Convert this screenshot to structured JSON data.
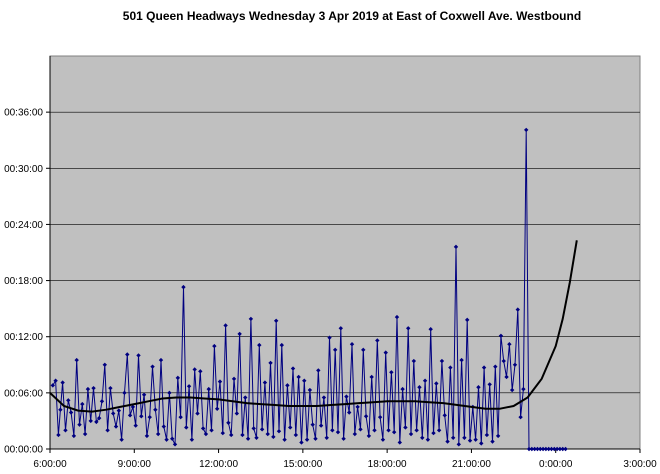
{
  "chart_data": {
    "type": "line",
    "title": "501 Queen Headways Wednesday 3 Apr 2019 at East of Coxwell Ave. Westbound",
    "xlabel": "",
    "ylabel": "",
    "x_unit": "hours since 0:00 of service day",
    "y_unit": "minutes",
    "xlim": [
      6,
      27
    ],
    "ylim": [
      0,
      42
    ],
    "x_tick_labels": [
      "6:00:00",
      "9:00:00",
      "12:00:00",
      "15:00:00",
      "18:00:00",
      "21:00:00",
      "0:00:00",
      "3:00:00"
    ],
    "x_tick_values": [
      6,
      9,
      12,
      15,
      18,
      21,
      24,
      27
    ],
    "y_tick_labels": [
      "00:00:00",
      "00:06:00",
      "00:12:00",
      "00:18:00",
      "00:24:00",
      "00:30:00",
      "00:36:00"
    ],
    "y_tick_values": [
      0,
      6,
      12,
      18,
      24,
      30,
      36
    ],
    "grid": "horizontal",
    "plot_background": "#C0C0C0",
    "series": [
      {
        "name": "",
        "style": "line-with-diamond-markers",
        "color": "#000080",
        "x": [
          6.1,
          6.2,
          6.3,
          6.37,
          6.45,
          6.55,
          6.65,
          6.75,
          6.85,
          6.95,
          7.05,
          7.15,
          7.25,
          7.35,
          7.45,
          7.55,
          7.65,
          7.75,
          7.85,
          7.95,
          8.05,
          8.15,
          8.25,
          8.35,
          8.45,
          8.55,
          8.65,
          8.75,
          8.85,
          8.95,
          9.05,
          9.15,
          9.25,
          9.35,
          9.45,
          9.55,
          9.65,
          9.75,
          9.85,
          9.95,
          10.05,
          10.15,
          10.25,
          10.35,
          10.45,
          10.55,
          10.65,
          10.75,
          10.85,
          10.95,
          11.05,
          11.15,
          11.25,
          11.35,
          11.45,
          11.55,
          11.65,
          11.75,
          11.85,
          11.95,
          12.05,
          12.15,
          12.25,
          12.35,
          12.45,
          12.55,
          12.65,
          12.75,
          12.85,
          12.95,
          13.05,
          13.15,
          13.25,
          13.35,
          13.45,
          13.55,
          13.65,
          13.75,
          13.85,
          13.95,
          14.05,
          14.15,
          14.25,
          14.35,
          14.45,
          14.55,
          14.65,
          14.75,
          14.85,
          14.95,
          15.05,
          15.15,
          15.25,
          15.35,
          15.45,
          15.55,
          15.65,
          15.75,
          15.85,
          15.95,
          16.05,
          16.15,
          16.25,
          16.35,
          16.45,
          16.55,
          16.65,
          16.75,
          16.85,
          16.95,
          17.05,
          17.15,
          17.25,
          17.35,
          17.45,
          17.55,
          17.65,
          17.75,
          17.85,
          17.95,
          18.05,
          18.15,
          18.25,
          18.35,
          18.45,
          18.55,
          18.65,
          18.75,
          18.85,
          18.95,
          19.05,
          19.15,
          19.25,
          19.35,
          19.45,
          19.55,
          19.65,
          19.75,
          19.85,
          19.95,
          20.05,
          20.15,
          20.25,
          20.35,
          20.45,
          20.55,
          20.65,
          20.75,
          20.85,
          20.95,
          21.05,
          21.15,
          21.25,
          21.35,
          21.45,
          21.55,
          21.65,
          21.75,
          21.85,
          21.95,
          22.05,
          22.15,
          22.25,
          22.35,
          22.45,
          22.55,
          22.65,
          22.75,
          22.85,
          22.95,
          23.05,
          23.15,
          23.25,
          23.35,
          23.45,
          23.55,
          23.65,
          23.75,
          23.85,
          23.95,
          24.05,
          24.15,
          24.25,
          24.35
        ],
        "y": [
          6.8,
          7.3,
          1.5,
          4.2,
          7.1,
          2.0,
          5.2,
          3.9,
          1.4,
          9.5,
          2.6,
          4.8,
          1.6,
          6.4,
          3.0,
          6.5,
          2.9,
          3.3,
          5.1,
          9.0,
          2.0,
          6.5,
          3.8,
          2.4,
          4.1,
          1.0,
          6.0,
          10.1,
          3.6,
          4.5,
          2.5,
          10.0,
          3.5,
          5.8,
          1.4,
          3.4,
          8.8,
          4.2,
          1.6,
          9.5,
          2.4,
          1.0,
          6.0,
          1.1,
          0.5,
          7.6,
          3.4,
          17.3,
          2.3,
          6.7,
          1.0,
          8.5,
          3.8,
          8.3,
          2.2,
          1.6,
          6.4,
          2.0,
          11.0,
          4.3,
          7.2,
          1.7,
          13.2,
          2.8,
          1.5,
          7.5,
          3.8,
          12.3,
          1.5,
          5.5,
          1.1,
          13.9,
          2.2,
          1.2,
          11.1,
          2.1,
          7.1,
          1.6,
          9.2,
          1.3,
          13.7,
          1.9,
          11.1,
          1.0,
          6.8,
          2.3,
          8.6,
          1.5,
          7.7,
          0.7,
          7.3,
          1.0,
          6.3,
          2.6,
          1.1,
          8.4,
          2.5,
          5.5,
          1.2,
          11.9,
          2.0,
          10.6,
          1.8,
          12.9,
          1.1,
          5.6,
          3.9,
          11.2,
          1.6,
          4.5,
          2.1,
          10.6,
          3.5,
          1.4,
          7.7,
          2.0,
          11.6,
          3.4,
          1.0,
          10.3,
          2.0,
          8.2,
          1.8,
          14.1,
          0.7,
          6.4,
          2.3,
          12.9,
          1.6,
          9.4,
          2.0,
          6.6,
          1.2,
          7.3,
          1.0,
          12.8,
          1.7,
          7.0,
          2.0,
          9.4,
          3.6,
          0.8,
          8.7,
          1.2,
          21.6,
          0.5,
          9.5,
          1.2,
          13.8,
          0.9,
          4.5,
          1.0,
          6.6,
          0.6,
          8.7,
          1.5,
          6.9,
          0.8,
          8.8,
          1.4,
          12.1,
          9.4,
          7.7,
          11.2,
          6.3,
          9.0,
          14.9,
          3.4,
          6.4,
          34.1,
          0,
          0,
          0,
          0,
          0,
          0,
          0,
          0,
          0,
          0,
          0,
          0,
          0,
          0
        ]
      },
      {
        "name": "",
        "style": "smooth-trend-line",
        "color": "#000000",
        "x": [
          6.0,
          6.5,
          7.0,
          7.5,
          8.0,
          8.5,
          9.0,
          9.5,
          10.0,
          10.5,
          11.0,
          11.5,
          12.0,
          12.5,
          13.0,
          13.5,
          14.0,
          14.5,
          15.0,
          15.5,
          16.0,
          16.5,
          17.0,
          17.5,
          18.0,
          18.5,
          19.0,
          19.5,
          20.0,
          20.5,
          21.0,
          21.5,
          22.0,
          22.5,
          23.0,
          23.5,
          24.0,
          24.25,
          24.5,
          24.75
        ],
        "y": [
          6.0,
          4.6,
          4.1,
          4.0,
          4.2,
          4.5,
          4.8,
          5.1,
          5.4,
          5.5,
          5.5,
          5.4,
          5.3,
          5.1,
          4.9,
          4.8,
          4.7,
          4.6,
          4.6,
          4.6,
          4.7,
          4.8,
          4.9,
          5.0,
          5.1,
          5.1,
          5.1,
          5.0,
          4.9,
          4.7,
          4.5,
          4.3,
          4.3,
          4.6,
          5.5,
          7.5,
          11.0,
          13.9,
          17.8,
          22.3
        ]
      }
    ]
  }
}
